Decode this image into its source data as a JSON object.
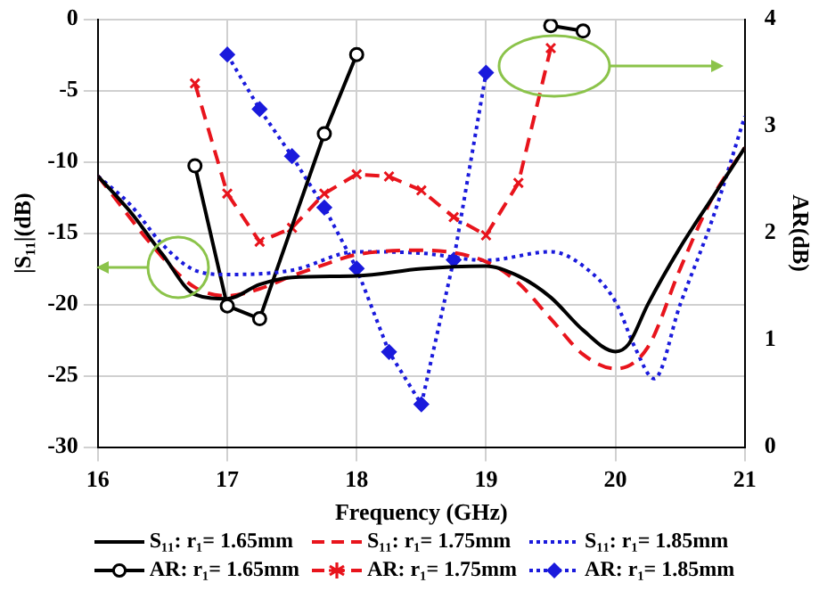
{
  "chart_data": {
    "type": "line",
    "xlabel": "Frequency (GHz)",
    "ylabel": "|S₁₁|(dB)",
    "y2label": "AR(dB)",
    "xlim": [
      16,
      21
    ],
    "xticks": [
      16,
      17,
      18,
      19,
      20,
      21
    ],
    "ylim": [
      -30,
      0
    ],
    "yticks": [
      -30,
      -25,
      -20,
      -15,
      -10,
      -5,
      0
    ],
    "y2lim": [
      0,
      4
    ],
    "y2ticks": [
      0,
      1,
      2,
      3,
      4
    ],
    "grid": true,
    "legend": "bottom",
    "series": [
      {
        "name": "S₁₁: r₁= 1.65mm",
        "type": "line",
        "color": "#000000",
        "marker": "none",
        "line_style": "solid",
        "x": [
          16,
          16.25,
          16.5,
          16.75,
          17,
          17.25,
          17.5,
          18,
          18.5,
          19,
          19.25,
          19.5,
          19.75,
          20,
          20.1,
          20.25,
          20.5,
          20.75,
          21
        ],
        "values": [
          -11,
          -13.5,
          -16.5,
          -19.3,
          -19.6,
          -18.6,
          -18.1,
          -18,
          -17.5,
          -17.3,
          -18,
          -19.5,
          -21.8,
          -23.3,
          -22.8,
          -20,
          -16,
          -12.5,
          -9
        ]
      },
      {
        "name": "S₁₁: r₁= 1.75mm",
        "type": "line",
        "color": "#e8141c",
        "marker": "none",
        "line_style": "dashed",
        "x": [
          16,
          16.5,
          16.75,
          17,
          17.25,
          17.5,
          17.75,
          18,
          18.5,
          19,
          19.25,
          19.5,
          19.75,
          20,
          20.25,
          20.5,
          20.75,
          21
        ],
        "values": [
          -11,
          -16.7,
          -18.8,
          -19.4,
          -18.9,
          -18,
          -17.2,
          -16.5,
          -16.2,
          -17,
          -18.5,
          -21,
          -23.5,
          -24.5,
          -23,
          -17.5,
          -12.5,
          -9
        ]
      },
      {
        "name": "S₁₁: r₁= 1.85mm",
        "type": "line",
        "color": "#1a1adc",
        "marker": "none",
        "line_style": "dotted",
        "x": [
          16,
          16.25,
          16.5,
          16.75,
          17,
          17.5,
          18,
          18.5,
          19,
          19.5,
          19.75,
          20,
          20.15,
          20.3,
          20.5,
          20.75,
          21
        ],
        "values": [
          -11,
          -13,
          -15.8,
          -17.6,
          -17.9,
          -17.6,
          -16.3,
          -16.4,
          -16.9,
          -16.3,
          -17.3,
          -19.8,
          -23,
          -25.2,
          -20,
          -14,
          -6.8
        ]
      },
      {
        "name": "AR: r₁= 1.65mm",
        "type": "line",
        "axis": "y2",
        "color": "#000000",
        "marker": "circle",
        "line_style": "solid",
        "x": [
          16.75,
          17,
          17.25,
          17.75,
          18,
          18.75,
          19.5,
          19.75
        ],
        "values": [
          2.63,
          1.32,
          1.2,
          2.93,
          3.67,
          null,
          3.94,
          3.89
        ]
      },
      {
        "name": "AR: r₁= 1.75mm",
        "type": "line",
        "axis": "y2",
        "color": "#e8141c",
        "marker": "cross",
        "line_style": "dashed",
        "x": [
          16.75,
          17,
          17.25,
          17.5,
          17.75,
          18,
          18.25,
          18.5,
          18.75,
          19,
          19.25,
          19.5
        ],
        "values": [
          3.4,
          2.37,
          1.92,
          2.05,
          2.37,
          2.55,
          2.53,
          2.4,
          2.15,
          1.98,
          2.47,
          3.73
        ]
      },
      {
        "name": "AR: r₁= 1.85mm",
        "type": "line",
        "axis": "y2",
        "color": "#1a1adc",
        "marker": "diamond",
        "line_style": "dotted",
        "x": [
          17,
          17.25,
          17.5,
          17.75,
          18,
          18.25,
          18.5,
          18.75,
          19
        ],
        "values": [
          3.67,
          3.16,
          2.72,
          2.24,
          1.67,
          0.89,
          0.4,
          1.75,
          3.5
        ]
      }
    ]
  }
}
